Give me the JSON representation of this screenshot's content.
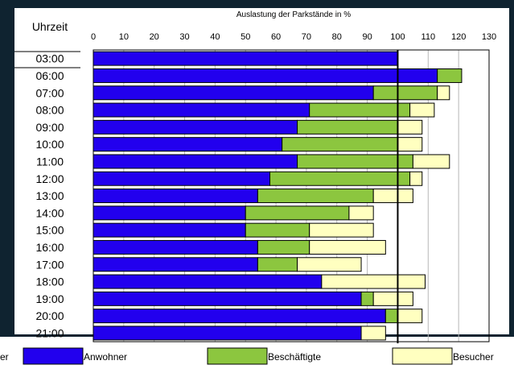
{
  "chart_data": {
    "type": "bar",
    "orientation": "horizontal",
    "stacked": true,
    "title": "Auslastung der Parkstände in %",
    "ylabel": "Uhrzeit",
    "categories": [
      "03:00",
      "06:00",
      "07:00",
      "08:00",
      "09:00",
      "10:00",
      "11:00",
      "12:00",
      "13:00",
      "14:00",
      "15:00",
      "16:00",
      "17:00",
      "18:00",
      "19:00",
      "20:00",
      "21:00"
    ],
    "series": [
      {
        "name": "Anwohner",
        "color": "#2200ee",
        "values": [
          100,
          113,
          92,
          71,
          67,
          62,
          67,
          58,
          54,
          50,
          50,
          54,
          54,
          75,
          88,
          96,
          88
        ]
      },
      {
        "name": "Beschäftigte",
        "color": "#8cc63f",
        "values": [
          0,
          8,
          21,
          33,
          33,
          38,
          38,
          46,
          38,
          34,
          21,
          17,
          13,
          0,
          4,
          4,
          0
        ]
      },
      {
        "name": "Besucher",
        "color": "#ffffc0",
        "values": [
          0,
          0,
          4,
          8,
          8,
          8,
          12,
          4,
          13,
          8,
          21,
          25,
          21,
          34,
          13,
          8,
          8
        ]
      }
    ],
    "xlim": [
      0,
      130
    ],
    "xticks": [
      "0",
      "10",
      "20",
      "30",
      "40",
      "50",
      "60",
      "70",
      "80",
      "90",
      "100",
      "110",
      "120",
      "130"
    ],
    "reference_line": 100,
    "grid": true,
    "legend": "bottom"
  },
  "legend_clip_text": "er"
}
